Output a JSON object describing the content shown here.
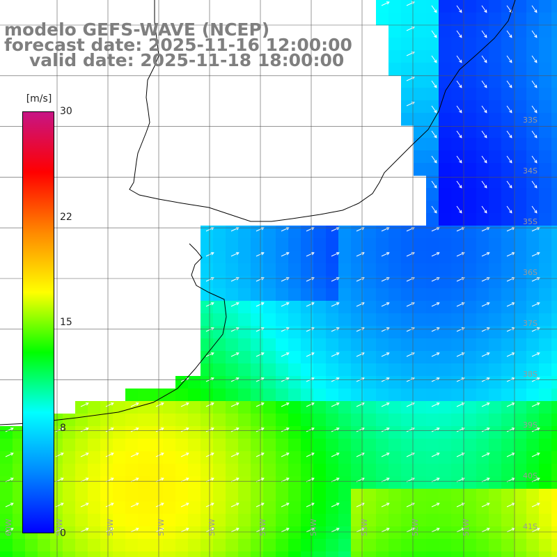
{
  "title": {
    "line1": "modelo GEFS-WAVE (NCEP)",
    "line2": "forecast date: 2025-11-16 12:00:00",
    "line3": "valid date: 2025-11-18 18:00:00"
  },
  "colorbar": {
    "unit": "[m/s]",
    "min": 0,
    "max": 30,
    "ticks": [
      {
        "label": "30",
        "value": 30
      },
      {
        "label": "22",
        "value": 22.5
      },
      {
        "label": "15",
        "value": 15
      },
      {
        "label": "8",
        "value": 7.5
      },
      {
        "label": "0",
        "value": 0
      }
    ],
    "stops": [
      "#0000ff",
      "#0088ff",
      "#00ffff",
      "#00ff00",
      "#ffff00",
      "#ff8800",
      "#ff0000",
      "#c71585"
    ]
  },
  "map": {
    "extent": {
      "lon": [
        -61,
        -50.5
      ],
      "lat": [
        -41.5,
        -30.5
      ]
    },
    "lat_labels": [
      "33S",
      "34S",
      "35S",
      "36S",
      "37S",
      "38S",
      "39S",
      "40S",
      "41S"
    ],
    "lon_labels": [
      "60W",
      "59W",
      "58W",
      "57W",
      "56W",
      "55W",
      "54W",
      "53W",
      "52W",
      "51W"
    ],
    "colors": {
      "land": "#ffffff",
      "coast": "#000000",
      "grid": "#555555",
      "arrow": "#ffffff",
      "label": "#9a9a9a"
    }
  }
}
